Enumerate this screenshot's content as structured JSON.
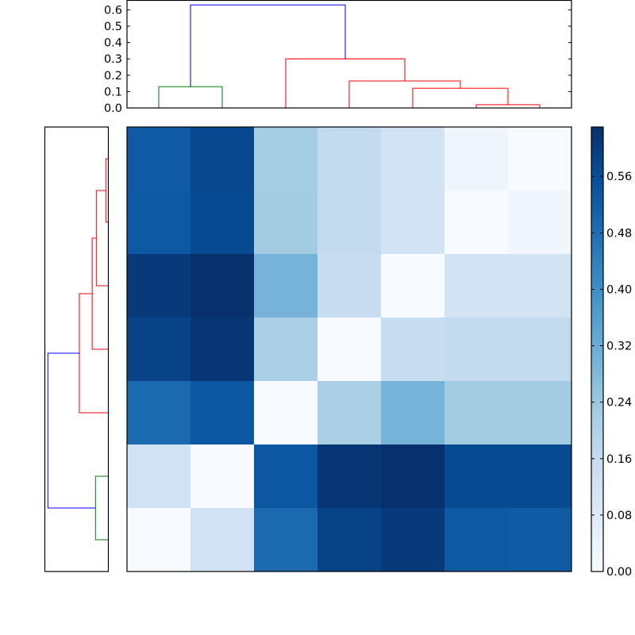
{
  "chart_data": [
    {
      "type": "dendrogram",
      "name": "top-dendrogram",
      "orientation": "top",
      "ylim": [
        0.0,
        0.65
      ],
      "yticks": [
        "0.0",
        "0.1",
        "0.2",
        "0.3",
        "0.4",
        "0.5",
        "0.6"
      ],
      "leaf_count": 7,
      "links": [
        {
          "color": "#008000",
          "left_leaf": 0,
          "right_leaf": 1,
          "left_h": 0.0,
          "right_h": 0.0,
          "height": 0.13
        },
        {
          "color": "#ff0000",
          "left_leaf": 5,
          "right_leaf": 6,
          "left_h": 0.0,
          "right_h": 0.0,
          "height": 0.02
        },
        {
          "color": "#ff0000",
          "left_x_leaf": 4,
          "right_x_leaf": 5.5,
          "left_h": 0.0,
          "right_h": 0.02,
          "height": 0.12
        },
        {
          "color": "#ff0000",
          "left_x_leaf": 3,
          "right_x_leaf": 4.75,
          "left_h": 0.0,
          "right_h": 0.12,
          "height": 0.165
        },
        {
          "color": "#ff0000",
          "left_x_leaf": 2,
          "right_x_leaf": 3.875,
          "left_h": 0.0,
          "right_h": 0.165,
          "height": 0.3
        },
        {
          "color": "#0000ff",
          "left_x_leaf": 0.5,
          "right_x_leaf": 2.9375,
          "left_h": 0.13,
          "right_h": 0.3,
          "height": 0.63
        }
      ]
    },
    {
      "type": "dendrogram",
      "name": "left-dendrogram",
      "orientation": "left",
      "leaf_count": 7,
      "links": [
        {
          "color": "#ff0000",
          "top_leaf": 0,
          "bottom_leaf": 1,
          "depth": 0.02
        },
        {
          "color": "#ff0000",
          "top_x_leaf": 0.5,
          "bottom_x_leaf": 2,
          "depth": 0.12
        },
        {
          "color": "#ff0000",
          "top_x_leaf": 1.25,
          "bottom_x_leaf": 3,
          "depth": 0.165
        },
        {
          "color": "#ff0000",
          "top_x_leaf": 2.125,
          "bottom_x_leaf": 4,
          "depth": 0.3
        },
        {
          "color": "#008000",
          "top_leaf": 5,
          "bottom_leaf": 6,
          "depth": 0.13
        },
        {
          "color": "#0000ff",
          "top_x_leaf": 3.0625,
          "bottom_x_leaf": 5.5,
          "depth": 0.63
        }
      ]
    },
    {
      "type": "heatmap",
      "name": "distance-matrix",
      "colormap": "Blues",
      "vmin": 0.0,
      "vmax": 0.63,
      "rows": 7,
      "cols": 7,
      "values": [
        [
          0.5,
          0.56,
          0.23,
          0.16,
          0.12,
          0.03,
          0.01
        ],
        [
          0.51,
          0.56,
          0.23,
          0.16,
          0.12,
          0.0,
          0.02
        ],
        [
          0.6,
          0.63,
          0.31,
          0.14,
          0.0,
          0.12,
          0.12
        ],
        [
          0.57,
          0.61,
          0.22,
          0.0,
          0.14,
          0.16,
          0.16
        ],
        [
          0.46,
          0.52,
          0.0,
          0.22,
          0.31,
          0.23,
          0.23
        ],
        [
          0.13,
          0.0,
          0.52,
          0.61,
          0.63,
          0.56,
          0.56
        ],
        [
          0.0,
          0.13,
          0.46,
          0.57,
          0.6,
          0.51,
          0.5
        ]
      ],
      "cell_colors": [
        [
          "#105ba4",
          "#08488e",
          "#a5cde3",
          "#c3d9ed",
          "#d2e3f3",
          "#eff5fd",
          "#f6faff"
        ],
        [
          "#0d59a3",
          "#084a91",
          "#a3cbe2",
          "#c3d9ed",
          "#d2e3f3",
          "#f6faff",
          "#f1f6fd"
        ],
        [
          "#083a7a",
          "#072f6b",
          "#77b3d8",
          "#c8ddf0",
          "#f6faff",
          "#d2e3f3",
          "#d2e3f3"
        ],
        [
          "#084387",
          "#083573",
          "#abcfe5",
          "#f6faff",
          "#c8ddf0",
          "#c3d9ed",
          "#c3d9ed"
        ],
        [
          "#1b69af",
          "#0d56a0",
          "#f6faff",
          "#abcfe5",
          "#77b3d8",
          "#a3cbe2",
          "#a3cbe2"
        ],
        [
          "#cfe1f2",
          "#f6faff",
          "#0d56a0",
          "#083573",
          "#072f6b",
          "#084a91",
          "#084a91"
        ],
        [
          "#f6faff",
          "#cfe1f2",
          "#1b69af",
          "#084387",
          "#083a7a",
          "#0d59a3",
          "#105ba4"
        ]
      ]
    },
    {
      "type": "colorbar",
      "name": "colorbar",
      "colormap": "Blues",
      "range": [
        0.0,
        0.63
      ],
      "ticks": [
        "0.00",
        "0.08",
        "0.16",
        "0.24",
        "0.32",
        "0.40",
        "0.48",
        "0.56"
      ],
      "tick_values": [
        0.0,
        0.08,
        0.16,
        0.24,
        0.32,
        0.4,
        0.48,
        0.56
      ],
      "color_top": "#08306b",
      "color_bottom": "#f7fbff"
    }
  ],
  "top_dendrogram": {
    "yticks": [
      "0.0",
      "0.1",
      "0.2",
      "0.3",
      "0.4",
      "0.5",
      "0.6"
    ]
  },
  "colorbar": {
    "ticks": [
      "0.00",
      "0.08",
      "0.16",
      "0.24",
      "0.32",
      "0.40",
      "0.48",
      "0.56"
    ]
  }
}
